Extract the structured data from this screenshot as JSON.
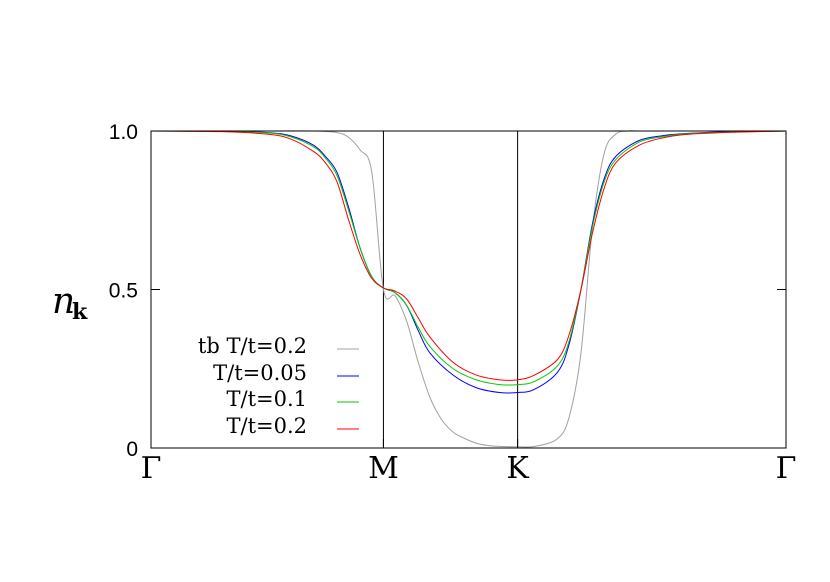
{
  "chart_data": {
    "type": "line",
    "ylabel": {
      "base": "n",
      "subscript": "k"
    },
    "x_ticks": [
      "Γ",
      "M",
      "K",
      "Γ"
    ],
    "x_tick_positions": [
      0,
      1,
      1.5774,
      2.7321
    ],
    "xlim": [
      0,
      2.7321
    ],
    "y_ticks": [
      "0",
      "0.5",
      "1.0"
    ],
    "y_tick_values": [
      0,
      0.5,
      1.0
    ],
    "ylim": [
      0,
      1.0
    ],
    "vertical_lines_at": [
      1,
      1.5774
    ],
    "legend_position": "bottom-left",
    "series": [
      {
        "name": "tb T/t=0.2",
        "color": "#a0a0a0",
        "x": [
          0,
          0.5,
          0.7,
          0.8,
          0.85,
          0.9,
          0.95,
          1.0,
          1.05,
          1.1,
          1.15,
          1.2,
          1.25,
          1.3,
          1.35,
          1.4,
          1.45,
          1.5,
          1.55,
          1.5774,
          1.65,
          1.75,
          1.8,
          1.85,
          1.9,
          1.95,
          2.0,
          2.05,
          2.1,
          2.2,
          2.5,
          2.7321
        ],
        "y": [
          1.0,
          1.0,
          1.0,
          0.995,
          0.98,
          0.94,
          0.87,
          0.5,
          0.48,
          0.4,
          0.27,
          0.16,
          0.09,
          0.05,
          0.03,
          0.015,
          0.008,
          0.005,
          0.004,
          0.004,
          0.005,
          0.03,
          0.1,
          0.3,
          0.7,
          0.93,
          0.99,
          1.0,
          1.0,
          1.0,
          1.0,
          1.0
        ]
      },
      {
        "name": "T/t=0.05",
        "color": "#0000ff",
        "x": [
          0,
          0.3,
          0.5,
          0.6,
          0.7,
          0.75,
          0.8,
          0.85,
          0.9,
          0.95,
          1.0,
          1.05,
          1.1,
          1.15,
          1.2,
          1.3,
          1.4,
          1.5,
          1.5774,
          1.65,
          1.75,
          1.8,
          1.85,
          1.9,
          1.95,
          2.0,
          2.1,
          2.2,
          2.3,
          2.5,
          2.7321
        ],
        "y": [
          1.0,
          0.999,
          0.995,
          0.985,
          0.955,
          0.92,
          0.87,
          0.76,
          0.63,
          0.54,
          0.505,
          0.49,
          0.45,
          0.37,
          0.3,
          0.23,
          0.19,
          0.175,
          0.175,
          0.185,
          0.24,
          0.33,
          0.5,
          0.71,
          0.85,
          0.92,
          0.97,
          0.985,
          0.992,
          0.998,
          1.0
        ]
      },
      {
        "name": "T/t=0.1",
        "color": "#00cc00",
        "x": [
          0,
          0.3,
          0.5,
          0.6,
          0.7,
          0.75,
          0.8,
          0.85,
          0.9,
          0.95,
          1.0,
          1.05,
          1.1,
          1.15,
          1.2,
          1.3,
          1.4,
          1.5,
          1.5774,
          1.65,
          1.75,
          1.8,
          1.85,
          1.9,
          1.95,
          2.0,
          2.1,
          2.2,
          2.3,
          2.5,
          2.7321
        ],
        "y": [
          1.0,
          0.999,
          0.994,
          0.982,
          0.95,
          0.915,
          0.86,
          0.75,
          0.63,
          0.54,
          0.505,
          0.49,
          0.45,
          0.38,
          0.32,
          0.25,
          0.215,
          0.2,
          0.2,
          0.21,
          0.26,
          0.34,
          0.5,
          0.7,
          0.84,
          0.91,
          0.965,
          0.982,
          0.991,
          0.997,
          1.0
        ]
      },
      {
        "name": "T/t=0.2",
        "color": "#ff0000",
        "x": [
          0,
          0.3,
          0.5,
          0.6,
          0.7,
          0.75,
          0.8,
          0.85,
          0.9,
          0.95,
          1.0,
          1.05,
          1.1,
          1.15,
          1.2,
          1.3,
          1.4,
          1.5,
          1.5774,
          1.65,
          1.75,
          1.8,
          1.85,
          1.9,
          1.95,
          2.0,
          2.1,
          2.2,
          2.3,
          2.5,
          2.7321
        ],
        "y": [
          1.0,
          0.998,
          0.99,
          0.975,
          0.935,
          0.9,
          0.84,
          0.72,
          0.61,
          0.535,
          0.505,
          0.495,
          0.47,
          0.41,
          0.35,
          0.27,
          0.23,
          0.215,
          0.215,
          0.23,
          0.28,
          0.36,
          0.5,
          0.68,
          0.82,
          0.9,
          0.955,
          0.978,
          0.989,
          0.996,
          1.0
        ]
      }
    ]
  }
}
